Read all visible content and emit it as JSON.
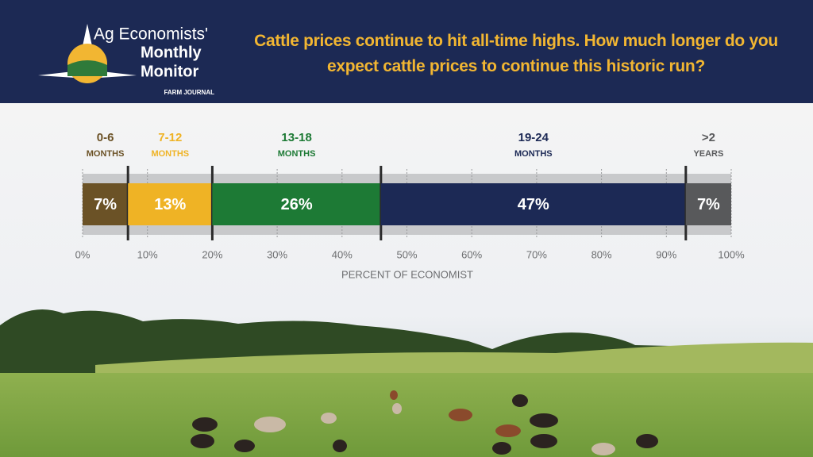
{
  "header": {
    "logo_line1": "Ag Economists'",
    "logo_line2": "Monthly",
    "logo_line3": "Monitor",
    "logo_brand": "FARM JOURNAL"
  },
  "chart_data": {
    "type": "stacked_bar",
    "title": "Cattle prices continue to hit all-time highs. How much longer do you expect cattle prices to continue this historic run?",
    "xlabel": "PERCENT OF ECONOMIST",
    "xlim": [
      0,
      100
    ],
    "xticks": [
      {
        "value": 0,
        "label": "0%"
      },
      {
        "value": 10,
        "label": "10%"
      },
      {
        "value": 20,
        "label": "20%"
      },
      {
        "value": 30,
        "label": "30%"
      },
      {
        "value": 40,
        "label": "40%"
      },
      {
        "value": 50,
        "label": "50%"
      },
      {
        "value": 60,
        "label": "60%"
      },
      {
        "value": 70,
        "label": "70%"
      },
      {
        "value": 80,
        "label": "80%"
      },
      {
        "value": 90,
        "label": "90%"
      },
      {
        "value": 100,
        "label": "100%"
      }
    ],
    "grid": true,
    "series": [
      {
        "name": "0-6",
        "unit": "MONTHS",
        "color": "#6b5226",
        "values": [
          7
        ],
        "value_labels": [
          "7%"
        ]
      },
      {
        "name": "7-12",
        "unit": "MONTHS",
        "color": "#efb325",
        "values": [
          13
        ],
        "value_labels": [
          "13%"
        ]
      },
      {
        "name": "13-18",
        "unit": "MONTHS",
        "color": "#1d7a35",
        "values": [
          26
        ],
        "value_labels": [
          "26%"
        ]
      },
      {
        "name": "19-24",
        "unit": "MONTHS",
        "color": "#1c2955",
        "values": [
          47
        ],
        "value_labels": [
          "47%"
        ]
      },
      {
        "name": ">2",
        "unit": "YEARS",
        "color": "#58595b",
        "values": [
          7
        ],
        "value_labels": [
          "7%"
        ]
      }
    ]
  }
}
